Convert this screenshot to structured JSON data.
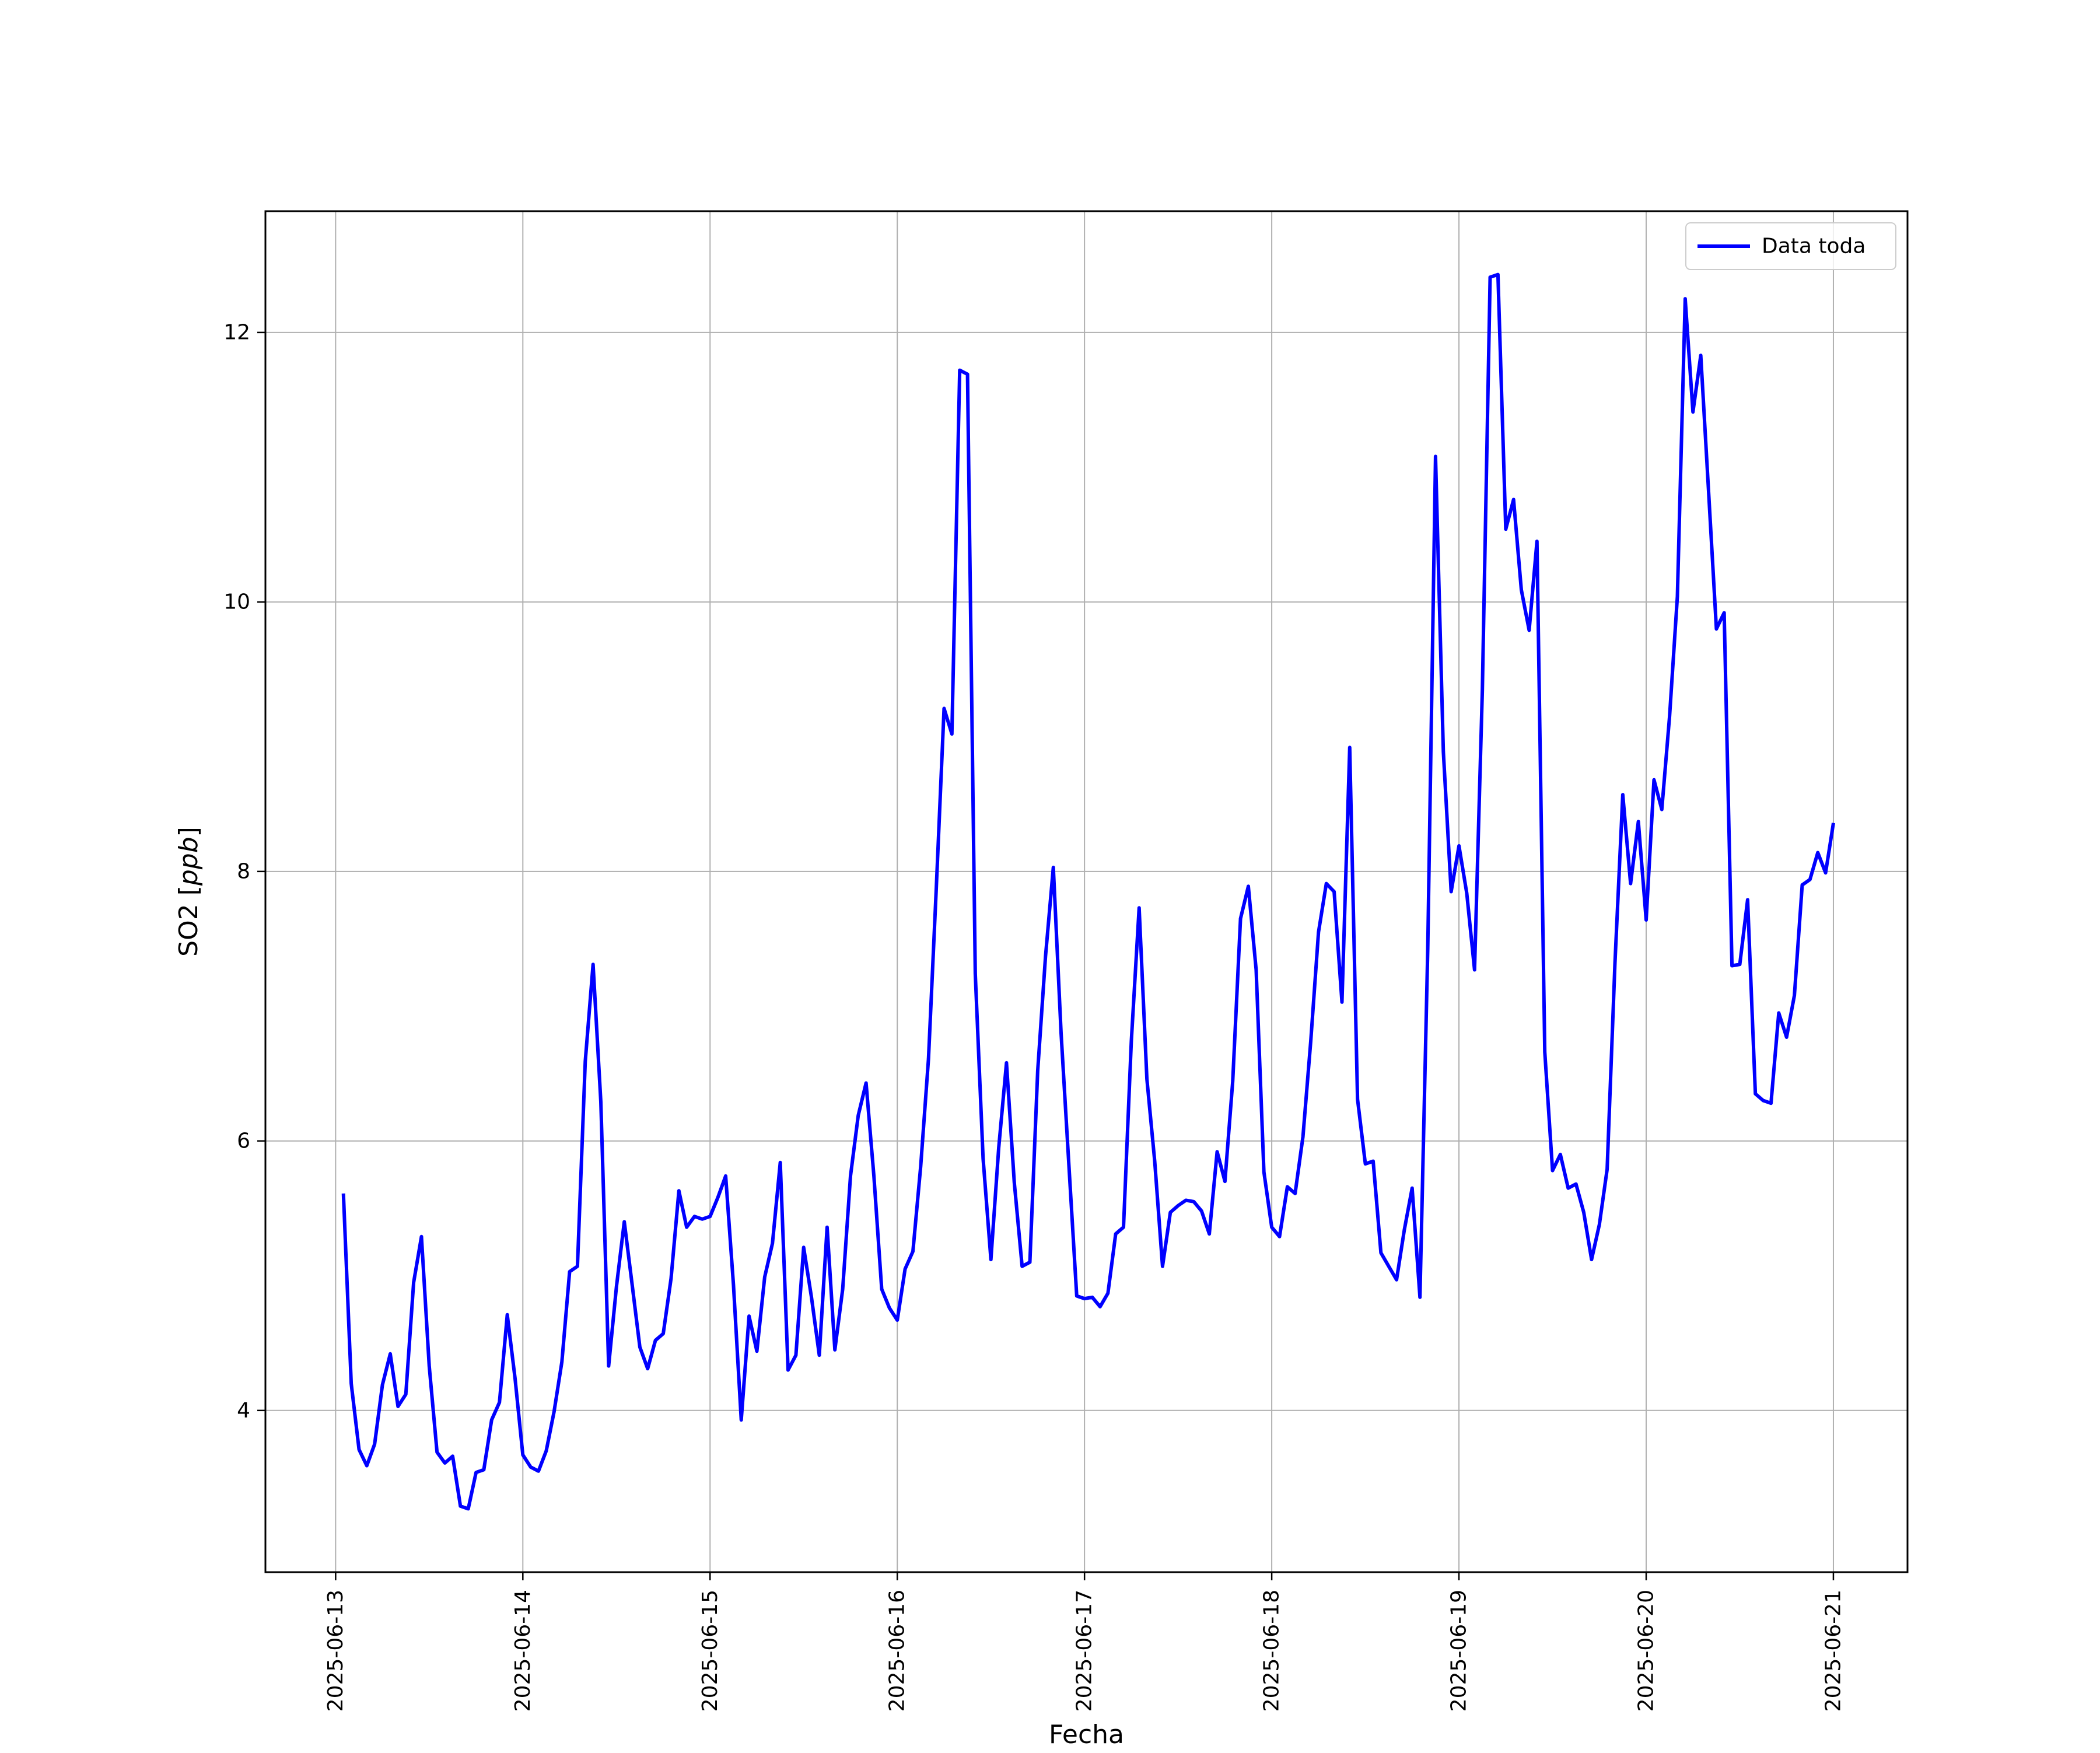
{
  "chart_data": {
    "type": "line",
    "title": "",
    "xlabel": "Fecha",
    "ylabel": "SO2 [ppb]",
    "ylabel_parts": {
      "text": "SO2 [",
      "italic": "ppb",
      "close": "]"
    },
    "xlim": [
      "2025-06-12T15:00",
      "2025-06-21T09:30"
    ],
    "ylim": [
      2.8,
      12.9
    ],
    "x_ticks": [
      "2025-06-13",
      "2025-06-14",
      "2025-06-15",
      "2025-06-16",
      "2025-06-17",
      "2025-06-18",
      "2025-06-19",
      "2025-06-20",
      "2025-06-21"
    ],
    "y_ticks": [
      4,
      6,
      8,
      10,
      12
    ],
    "grid": true,
    "legend_position": "top-right",
    "series": [
      {
        "name": "Data toda",
        "color": "#0000ff",
        "points": [
          [
            "2025-06-13T01:00",
            5.61
          ],
          [
            "2025-06-13T02:00",
            4.2
          ],
          [
            "2025-06-13T03:00",
            3.71
          ],
          [
            "2025-06-13T04:00",
            3.59
          ],
          [
            "2025-06-13T05:00",
            3.75
          ],
          [
            "2025-06-13T06:00",
            4.19
          ],
          [
            "2025-06-13T07:00",
            4.42
          ],
          [
            "2025-06-13T08:00",
            4.03
          ],
          [
            "2025-06-13T09:00",
            4.12
          ],
          [
            "2025-06-13T10:00",
            4.95
          ],
          [
            "2025-06-13T11:00",
            5.29
          ],
          [
            "2025-06-13T12:00",
            4.33
          ],
          [
            "2025-06-13T13:00",
            3.69
          ],
          [
            "2025-06-13T14:00",
            3.61
          ],
          [
            "2025-06-13T15:00",
            3.66
          ],
          [
            "2025-06-13T16:00",
            3.29
          ],
          [
            "2025-06-13T17:00",
            3.27
          ],
          [
            "2025-06-13T18:00",
            3.54
          ],
          [
            "2025-06-13T19:00",
            3.56
          ],
          [
            "2025-06-13T20:00",
            3.93
          ],
          [
            "2025-06-13T21:00",
            4.06
          ],
          [
            "2025-06-13T22:00",
            4.71
          ],
          [
            "2025-06-13T23:00",
            4.24
          ],
          [
            "2025-06-14T00:00",
            3.67
          ],
          [
            "2025-06-14T01:00",
            3.58
          ],
          [
            "2025-06-14T02:00",
            3.55
          ],
          [
            "2025-06-14T03:00",
            3.7
          ],
          [
            "2025-06-14T04:00",
            3.99
          ],
          [
            "2025-06-14T05:00",
            4.36
          ],
          [
            "2025-06-14T06:00",
            5.03
          ],
          [
            "2025-06-14T07:00",
            5.07
          ],
          [
            "2025-06-14T08:00",
            6.59
          ],
          [
            "2025-06-14T09:00",
            7.31
          ],
          [
            "2025-06-14T10:00",
            6.29
          ],
          [
            "2025-06-14T11:00",
            4.33
          ],
          [
            "2025-06-14T12:00",
            4.92
          ],
          [
            "2025-06-14T13:00",
            5.4
          ],
          [
            "2025-06-14T14:00",
            4.94
          ],
          [
            "2025-06-14T15:00",
            4.47
          ],
          [
            "2025-06-14T16:00",
            4.31
          ],
          [
            "2025-06-14T17:00",
            4.52
          ],
          [
            "2025-06-14T18:00",
            4.57
          ],
          [
            "2025-06-14T19:00",
            4.98
          ],
          [
            "2025-06-14T20:00",
            5.63
          ],
          [
            "2025-06-14T21:00",
            5.36
          ],
          [
            "2025-06-14T22:00",
            5.44
          ],
          [
            "2025-06-14T23:00",
            5.42
          ],
          [
            "2025-06-15T00:00",
            5.44
          ],
          [
            "2025-06-15T01:00",
            5.58
          ],
          [
            "2025-06-15T02:00",
            5.74
          ],
          [
            "2025-06-15T03:00",
            4.93
          ],
          [
            "2025-06-15T04:00",
            3.93
          ],
          [
            "2025-06-15T05:00",
            4.7
          ],
          [
            "2025-06-15T06:00",
            4.44
          ],
          [
            "2025-06-15T07:00",
            4.99
          ],
          [
            "2025-06-15T08:00",
            5.24
          ],
          [
            "2025-06-15T09:00",
            5.84
          ],
          [
            "2025-06-15T10:00",
            4.3
          ],
          [
            "2025-06-15T11:00",
            4.41
          ],
          [
            "2025-06-15T12:00",
            5.21
          ],
          [
            "2025-06-15T13:00",
            4.84
          ],
          [
            "2025-06-15T14:00",
            4.41
          ],
          [
            "2025-06-15T15:00",
            5.36
          ],
          [
            "2025-06-15T16:00",
            4.45
          ],
          [
            "2025-06-15T17:00",
            4.9
          ],
          [
            "2025-06-15T18:00",
            5.74
          ],
          [
            "2025-06-15T19:00",
            6.19
          ],
          [
            "2025-06-15T20:00",
            6.43
          ],
          [
            "2025-06-15T21:00",
            5.74
          ],
          [
            "2025-06-15T22:00",
            4.9
          ],
          [
            "2025-06-15T23:00",
            4.76
          ],
          [
            "2025-06-16T00:00",
            4.67
          ],
          [
            "2025-06-16T01:00",
            5.05
          ],
          [
            "2025-06-16T02:00",
            5.18
          ],
          [
            "2025-06-16T03:00",
            5.81
          ],
          [
            "2025-06-16T04:00",
            6.61
          ],
          [
            "2025-06-16T05:00",
            7.88
          ],
          [
            "2025-06-16T06:00",
            9.21
          ],
          [
            "2025-06-16T07:00",
            9.02
          ],
          [
            "2025-06-16T08:00",
            11.72
          ],
          [
            "2025-06-16T09:00",
            11.69
          ],
          [
            "2025-06-16T10:00",
            7.24
          ],
          [
            "2025-06-16T11:00",
            5.87
          ],
          [
            "2025-06-16T12:00",
            5.12
          ],
          [
            "2025-06-16T13:00",
            5.95
          ],
          [
            "2025-06-16T14:00",
            6.58
          ],
          [
            "2025-06-16T15:00",
            5.69
          ],
          [
            "2025-06-16T16:00",
            5.07
          ],
          [
            "2025-06-16T17:00",
            5.1
          ],
          [
            "2025-06-16T18:00",
            6.52
          ],
          [
            "2025-06-16T19:00",
            7.37
          ],
          [
            "2025-06-16T20:00",
            8.03
          ],
          [
            "2025-06-16T21:00",
            6.8
          ],
          [
            "2025-06-16T22:00",
            5.82
          ],
          [
            "2025-06-16T23:00",
            4.85
          ],
          [
            "2025-06-17T00:00",
            4.83
          ],
          [
            "2025-06-17T01:00",
            4.84
          ],
          [
            "2025-06-17T02:00",
            4.77
          ],
          [
            "2025-06-17T03:00",
            4.87
          ],
          [
            "2025-06-17T04:00",
            5.31
          ],
          [
            "2025-06-17T05:00",
            5.36
          ],
          [
            "2025-06-17T06:00",
            6.74
          ],
          [
            "2025-06-17T07:00",
            7.73
          ],
          [
            "2025-06-17T08:00",
            6.46
          ],
          [
            "2025-06-17T09:00",
            5.85
          ],
          [
            "2025-06-17T10:00",
            5.07
          ],
          [
            "2025-06-17T11:00",
            5.47
          ],
          [
            "2025-06-17T12:00",
            5.52
          ],
          [
            "2025-06-17T13:00",
            5.56
          ],
          [
            "2025-06-17T14:00",
            5.55
          ],
          [
            "2025-06-17T15:00",
            5.48
          ],
          [
            "2025-06-17T16:00",
            5.31
          ],
          [
            "2025-06-17T17:00",
            5.92
          ],
          [
            "2025-06-17T18:00",
            5.7
          ],
          [
            "2025-06-17T19:00",
            6.44
          ],
          [
            "2025-06-17T20:00",
            7.65
          ],
          [
            "2025-06-17T21:00",
            7.89
          ],
          [
            "2025-06-17T22:00",
            7.27
          ],
          [
            "2025-06-17T23:00",
            5.77
          ],
          [
            "2025-06-18T00:00",
            5.36
          ],
          [
            "2025-06-18T01:00",
            5.29
          ],
          [
            "2025-06-18T02:00",
            5.66
          ],
          [
            "2025-06-18T03:00",
            5.61
          ],
          [
            "2025-06-18T04:00",
            6.03
          ],
          [
            "2025-06-18T05:00",
            6.74
          ],
          [
            "2025-06-18T06:00",
            7.55
          ],
          [
            "2025-06-18T07:00",
            7.91
          ],
          [
            "2025-06-18T08:00",
            7.85
          ],
          [
            "2025-06-18T09:00",
            7.03
          ],
          [
            "2025-06-18T10:00",
            8.92
          ],
          [
            "2025-06-18T11:00",
            6.31
          ],
          [
            "2025-06-18T12:00",
            5.83
          ],
          [
            "2025-06-18T13:00",
            5.85
          ],
          [
            "2025-06-18T14:00",
            5.17
          ],
          [
            "2025-06-18T15:00",
            5.07
          ],
          [
            "2025-06-18T16:00",
            4.97
          ],
          [
            "2025-06-18T17:00",
            5.34
          ],
          [
            "2025-06-18T18:00",
            5.65
          ],
          [
            "2025-06-18T19:00",
            4.84
          ],
          [
            "2025-06-18T20:00",
            7.43
          ],
          [
            "2025-06-18T21:00",
            11.08
          ],
          [
            "2025-06-18T22:00",
            8.89
          ],
          [
            "2025-06-18T23:00",
            7.85
          ],
          [
            "2025-06-19T00:00",
            8.19
          ],
          [
            "2025-06-19T01:00",
            7.84
          ],
          [
            "2025-06-19T02:00",
            7.27
          ],
          [
            "2025-06-19T03:00",
            9.35
          ],
          [
            "2025-06-19T04:00",
            12.41
          ],
          [
            "2025-06-19T05:00",
            12.43
          ],
          [
            "2025-06-19T06:00",
            10.54
          ],
          [
            "2025-06-19T07:00",
            10.76
          ],
          [
            "2025-06-19T08:00",
            10.09
          ],
          [
            "2025-06-19T09:00",
            9.79
          ],
          [
            "2025-06-19T10:00",
            10.45
          ],
          [
            "2025-06-19T11:00",
            6.66
          ],
          [
            "2025-06-19T12:00",
            5.78
          ],
          [
            "2025-06-19T13:00",
            5.9
          ],
          [
            "2025-06-19T14:00",
            5.65
          ],
          [
            "2025-06-19T15:00",
            5.68
          ],
          [
            "2025-06-19T16:00",
            5.47
          ],
          [
            "2025-06-19T17:00",
            5.12
          ],
          [
            "2025-06-19T18:00",
            5.38
          ],
          [
            "2025-06-19T19:00",
            5.79
          ],
          [
            "2025-06-19T20:00",
            7.32
          ],
          [
            "2025-06-19T21:00",
            8.57
          ],
          [
            "2025-06-19T22:00",
            7.91
          ],
          [
            "2025-06-19T23:00",
            8.37
          ],
          [
            "2025-06-20T00:00",
            7.64
          ],
          [
            "2025-06-20T01:00",
            8.68
          ],
          [
            "2025-06-20T02:00",
            8.46
          ],
          [
            "2025-06-20T03:00",
            9.15
          ],
          [
            "2025-06-20T04:00",
            10.04
          ],
          [
            "2025-06-20T05:00",
            12.25
          ],
          [
            "2025-06-20T06:00",
            11.41
          ],
          [
            "2025-06-20T07:00",
            11.83
          ],
          [
            "2025-06-20T08:00",
            10.82
          ],
          [
            "2025-06-20T09:00",
            9.8
          ],
          [
            "2025-06-20T10:00",
            9.92
          ],
          [
            "2025-06-20T11:00",
            7.3
          ],
          [
            "2025-06-20T12:00",
            7.31
          ],
          [
            "2025-06-20T13:00",
            7.79
          ],
          [
            "2025-06-20T14:00",
            6.35
          ],
          [
            "2025-06-20T15:00",
            6.3
          ],
          [
            "2025-06-20T16:00",
            6.28
          ],
          [
            "2025-06-20T17:00",
            6.95
          ],
          [
            "2025-06-20T18:00",
            6.77
          ],
          [
            "2025-06-20T19:00",
            7.08
          ],
          [
            "2025-06-20T20:00",
            7.9
          ],
          [
            "2025-06-20T21:00",
            7.94
          ],
          [
            "2025-06-20T22:00",
            8.14
          ],
          [
            "2025-06-20T23:00",
            7.99
          ],
          [
            "2025-06-21T00:00",
            8.36
          ]
        ]
      }
    ]
  }
}
